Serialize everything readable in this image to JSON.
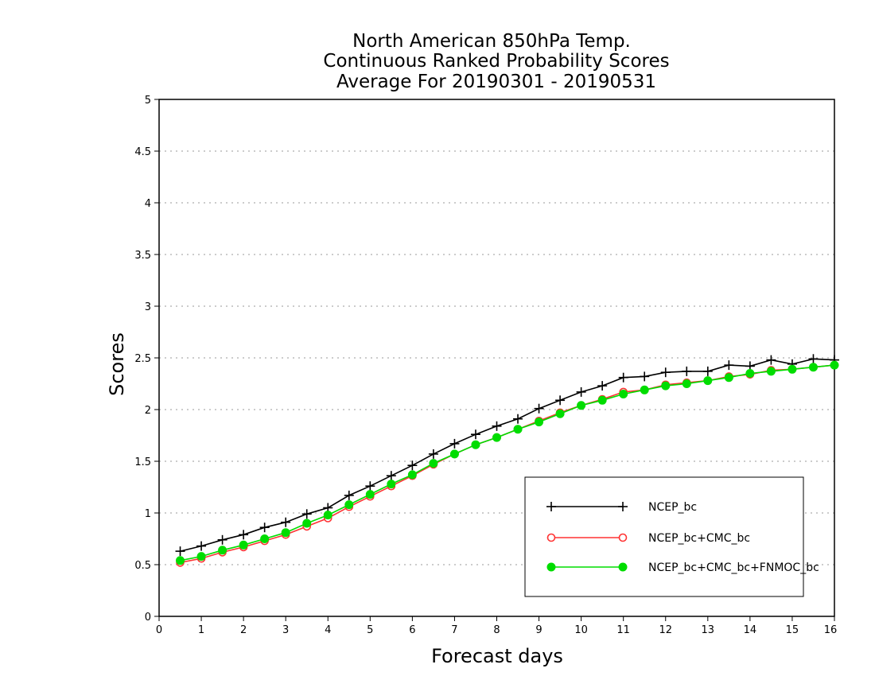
{
  "chart_data": {
    "type": "line",
    "title": [
      "North American 850hPa Temp.",
      "Continuous Ranked Probability Scores",
      "Average For 20190301 - 20190531"
    ],
    "xlabel": "Forecast days",
    "ylabel": "Scores",
    "xlim": [
      0,
      16
    ],
    "ylim": [
      0,
      5
    ],
    "xticks": [
      "0",
      "1",
      "2",
      "3",
      "4",
      "5",
      "6",
      "7",
      "8",
      "9",
      "10",
      "11",
      "12",
      "13",
      "14",
      "15",
      "16"
    ],
    "yticks": [
      "0",
      "0.5",
      "1",
      "1.5",
      "2",
      "2.5",
      "3",
      "3.5",
      "4",
      "4.5",
      "5"
    ],
    "grid": "dotted horizontal",
    "legend_position": "bottom-right",
    "x": [
      0.5,
      1,
      1.5,
      2,
      2.5,
      3,
      3.5,
      4,
      4.5,
      5,
      5.5,
      6,
      6.5,
      7,
      7.5,
      8,
      8.5,
      9,
      9.5,
      10,
      10.5,
      11,
      11.5,
      12,
      12.5,
      13,
      13.5,
      14,
      14.5,
      15,
      15.5,
      16
    ],
    "series": [
      {
        "name": "NCEP_bc",
        "color": "#000000",
        "marker": "plus",
        "values": [
          0.63,
          0.68,
          0.74,
          0.79,
          0.86,
          0.91,
          0.99,
          1.05,
          1.17,
          1.26,
          1.36,
          1.46,
          1.57,
          1.67,
          1.76,
          1.84,
          1.91,
          2.01,
          2.09,
          2.17,
          2.23,
          2.31,
          2.32,
          2.36,
          2.37,
          2.37,
          2.43,
          2.42,
          2.48,
          2.44,
          2.49,
          2.48
        ]
      },
      {
        "name": "NCEP_bc+CMC_bc",
        "color": "#ff3333",
        "marker": "open-circle",
        "values": [
          0.52,
          0.56,
          0.62,
          0.67,
          0.73,
          0.79,
          0.87,
          0.95,
          1.06,
          1.16,
          1.26,
          1.36,
          1.47,
          1.57,
          1.66,
          1.73,
          1.81,
          1.89,
          1.97,
          2.04,
          2.1,
          2.17,
          2.19,
          2.24,
          2.26,
          2.28,
          2.32,
          2.34,
          2.38,
          2.39,
          2.41,
          2.43
        ]
      },
      {
        "name": "NCEP_bc+CMC_bc+FNMOC_bc",
        "color": "#00dd00",
        "marker": "filled-circle",
        "values": [
          0.54,
          0.58,
          0.64,
          0.69,
          0.75,
          0.81,
          0.9,
          0.98,
          1.08,
          1.18,
          1.28,
          1.37,
          1.48,
          1.57,
          1.66,
          1.73,
          1.81,
          1.88,
          1.96,
          2.04,
          2.09,
          2.15,
          2.19,
          2.23,
          2.25,
          2.28,
          2.31,
          2.35,
          2.37,
          2.39,
          2.41,
          2.43
        ]
      }
    ]
  }
}
